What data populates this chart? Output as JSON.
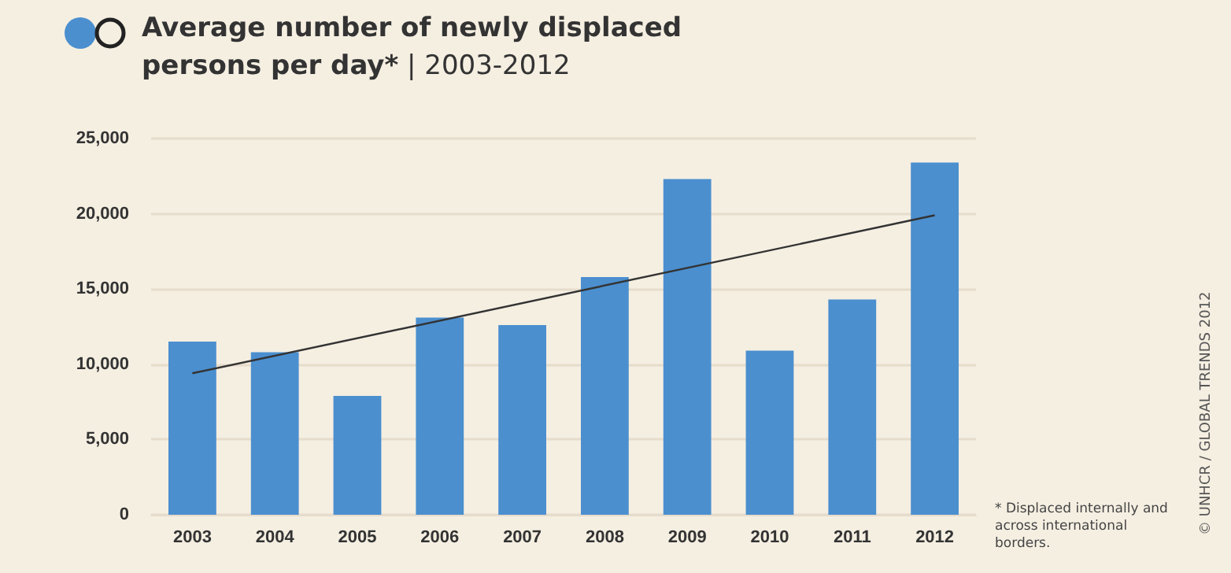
{
  "chart_data": {
    "type": "bar",
    "title": "Average number of newly displaced persons per day*",
    "subtitle": "| 2003-2012",
    "categories": [
      "2003",
      "2004",
      "2005",
      "2006",
      "2007",
      "2008",
      "2009",
      "2010",
      "2011",
      "2012"
    ],
    "series": [
      {
        "color": "#4b8fcf",
        "values": [
          11500,
          10800,
          7900,
          13100,
          12600,
          15800,
          22300,
          10900,
          14300,
          23400
        ]
      },
      {
        "type": "line",
        "color": "#333333",
        "values": [
          9400,
          null,
          null,
          null,
          null,
          null,
          null,
          null,
          null,
          19900
        ]
      }
    ],
    "ylim": [
      0,
      25000
    ],
    "yticks": [
      {
        "value": 0,
        "label": "0"
      },
      {
        "value": 5000,
        "label": "5,000"
      },
      {
        "value": 10000,
        "label": "10,000"
      },
      {
        "value": 15000,
        "label": "15,000"
      },
      {
        "value": 20000,
        "label": "20,000"
      },
      {
        "value": 25000,
        "label": "25,000"
      }
    ],
    "grid": "y",
    "marker": "none",
    "annotations": [
      "* Displaced internally and across international borders.",
      "© UNHCR / GLOBAL TRENDS 2012"
    ]
  }
}
